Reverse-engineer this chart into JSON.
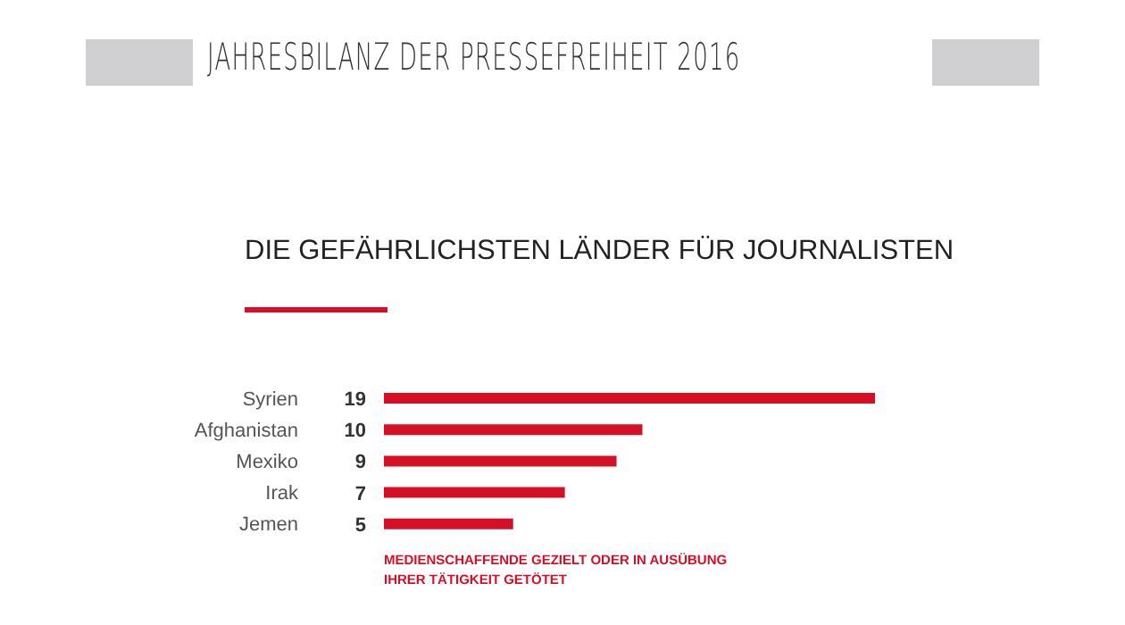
{
  "chart_data": {
    "type": "bar",
    "orientation": "horizontal",
    "title": "JAHRESBILANZ DER PRESSEFREIHEIT 2016",
    "subtitle": "DIE GEFÄHRLICHSTEN LÄNDER FÜR JOURNALISTEN",
    "categories": [
      "Syrien",
      "Afghanistan",
      "Mexiko",
      "Irak",
      "Jemen"
    ],
    "values": [
      19,
      10,
      9,
      7,
      5
    ],
    "color": "#d50f25",
    "data_labels": true,
    "annotations": [
      "MEDIENSCHAFFENDE GEZIELT ODER IN AUSÜBUNG\nIHRER TÄTIGKEIT GETÖTET"
    ]
  }
}
